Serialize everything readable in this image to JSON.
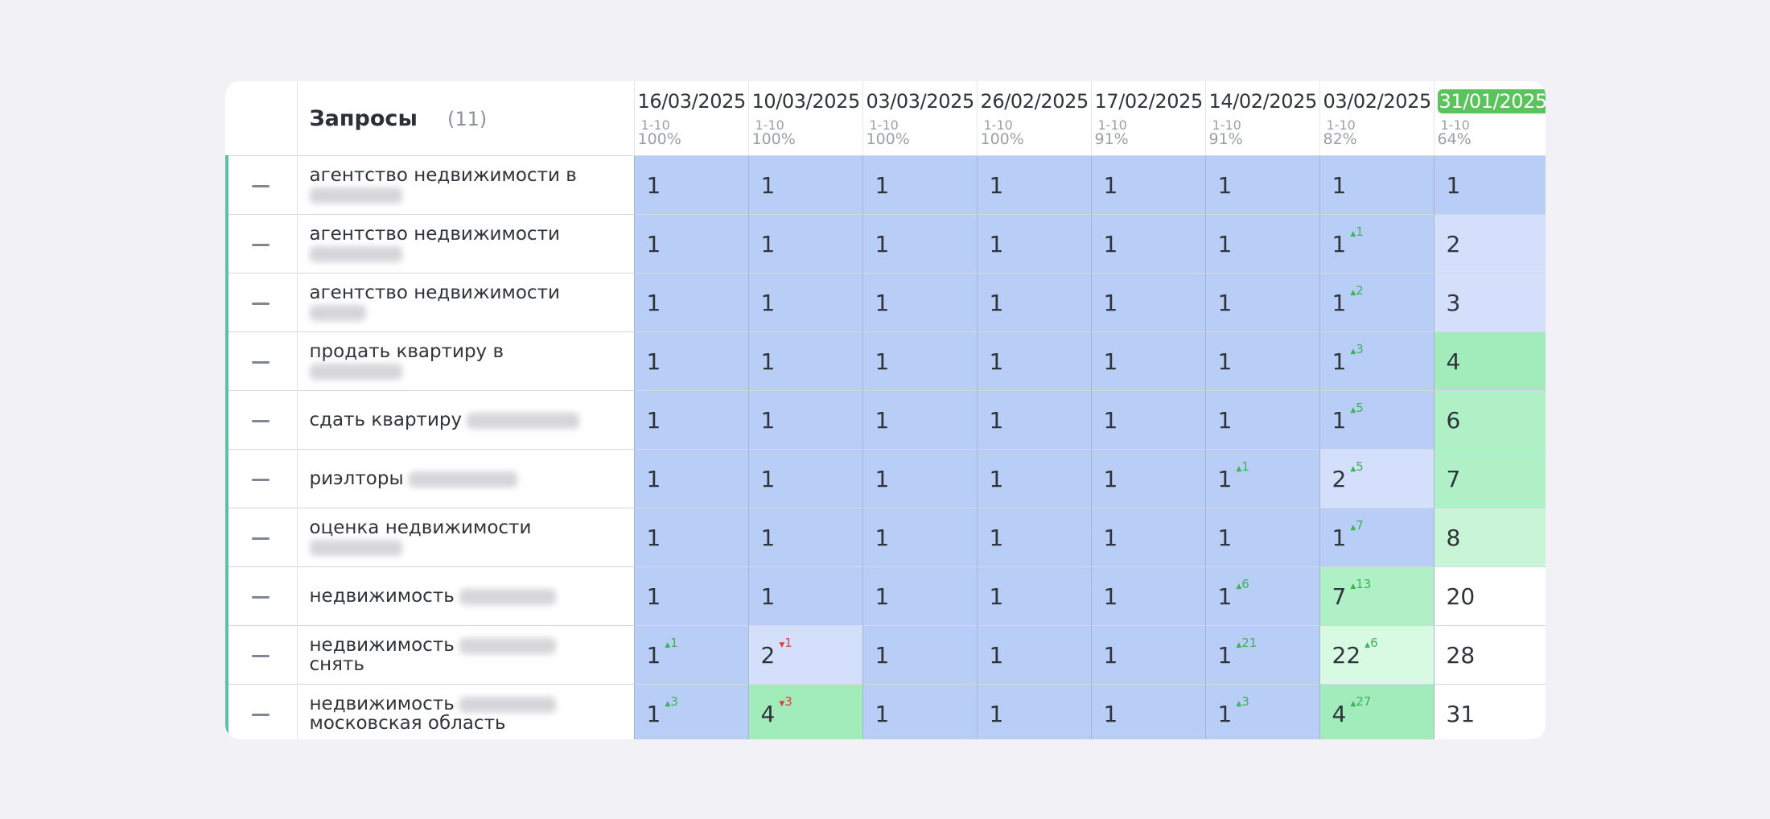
{
  "header": {
    "title": "Запросы",
    "count": "(11)"
  },
  "dates": [
    {
      "date": "16/03/2025",
      "range": "1-10",
      "pct": "100%"
    },
    {
      "date": "10/03/2025",
      "range": "1-10",
      "pct": "100%"
    },
    {
      "date": "03/03/2025",
      "range": "1-10",
      "pct": "100%"
    },
    {
      "date": "26/02/2025",
      "range": "1-10",
      "pct": "100%"
    },
    {
      "date": "17/02/2025",
      "range": "1-10",
      "pct": "91%"
    },
    {
      "date": "14/02/2025",
      "range": "1-10",
      "pct": "91%"
    },
    {
      "date": "03/02/2025",
      "range": "1-10",
      "pct": "82%"
    },
    {
      "date": "31/01/2025",
      "range": "1-10",
      "pct": "64%",
      "highlighted": true
    }
  ],
  "rows": [
    {
      "query": [
        "агентство недвижимости в"
      ],
      "blur": [
        null,
        115
      ],
      "cells": [
        [
          "1",
          "",
          "pd"
        ],
        [
          "1",
          "",
          "pd"
        ],
        [
          "1",
          "",
          "pd"
        ],
        [
          "1",
          "",
          "pd"
        ],
        [
          "1",
          "",
          "pd"
        ],
        [
          "1",
          "",
          "pd"
        ],
        [
          "1",
          "",
          "pd"
        ],
        [
          "1",
          "",
          "pd"
        ]
      ]
    },
    {
      "query": [
        "агентство недвижимости"
      ],
      "blur": [
        null,
        115
      ],
      "cells": [
        [
          "1",
          "",
          "pd"
        ],
        [
          "1",
          "",
          "pd"
        ],
        [
          "1",
          "",
          "pd"
        ],
        [
          "1",
          "",
          "pd"
        ],
        [
          "1",
          "",
          "pd"
        ],
        [
          "1",
          "",
          "pd"
        ],
        [
          "1",
          "+1",
          "pd"
        ],
        [
          "2",
          "",
          "pl"
        ]
      ]
    },
    {
      "query": [
        "агентство недвижимости"
      ],
      "blur": [
        null,
        70
      ],
      "cells": [
        [
          "1",
          "",
          "pd"
        ],
        [
          "1",
          "",
          "pd"
        ],
        [
          "1",
          "",
          "pd"
        ],
        [
          "1",
          "",
          "pd"
        ],
        [
          "1",
          "",
          "pd"
        ],
        [
          "1",
          "",
          "pd"
        ],
        [
          "1",
          "+2",
          "pd"
        ],
        [
          "3",
          "",
          "pl"
        ]
      ]
    },
    {
      "query": [
        "продать квартиру в"
      ],
      "blur": [
        null,
        115
      ],
      "cells": [
        [
          "1",
          "",
          "pd"
        ],
        [
          "1",
          "",
          "pd"
        ],
        [
          "1",
          "",
          "pd"
        ],
        [
          "1",
          "",
          "pd"
        ],
        [
          "1",
          "",
          "pd"
        ],
        [
          "1",
          "",
          "pd"
        ],
        [
          "1",
          "+3",
          "pd"
        ],
        [
          "4",
          "",
          "gd"
        ]
      ]
    },
    {
      "query": [
        "сдать квартиру"
      ],
      "blur": [
        140,
        null
      ],
      "cells": [
        [
          "1",
          "",
          "pd"
        ],
        [
          "1",
          "",
          "pd"
        ],
        [
          "1",
          "",
          "pd"
        ],
        [
          "1",
          "",
          "pd"
        ],
        [
          "1",
          "",
          "pd"
        ],
        [
          "1",
          "",
          "pd"
        ],
        [
          "1",
          "+5",
          "pd"
        ],
        [
          "6",
          "",
          "gm"
        ]
      ]
    },
    {
      "query": [
        "риэлторы"
      ],
      "blur": [
        135,
        null
      ],
      "cells": [
        [
          "1",
          "",
          "pd"
        ],
        [
          "1",
          "",
          "pd"
        ],
        [
          "1",
          "",
          "pd"
        ],
        [
          "1",
          "",
          "pd"
        ],
        [
          "1",
          "",
          "pd"
        ],
        [
          "1",
          "+1",
          "pd"
        ],
        [
          "2",
          "+5",
          "pl"
        ],
        [
          "7",
          "",
          "gm"
        ]
      ]
    },
    {
      "query": [
        "оценка недвижимости"
      ],
      "blur": [
        null,
        115
      ],
      "cells": [
        [
          "1",
          "",
          "pd"
        ],
        [
          "1",
          "",
          "pd"
        ],
        [
          "1",
          "",
          "pd"
        ],
        [
          "1",
          "",
          "pd"
        ],
        [
          "1",
          "",
          "pd"
        ],
        [
          "1",
          "",
          "pd"
        ],
        [
          "1",
          "+7",
          "pd"
        ],
        [
          "8",
          "",
          "gl"
        ]
      ]
    },
    {
      "query": [
        "недвижимость"
      ],
      "blur": [
        120,
        null
      ],
      "cells": [
        [
          "1",
          "",
          "pd"
        ],
        [
          "1",
          "",
          "pd"
        ],
        [
          "1",
          "",
          "pd"
        ],
        [
          "1",
          "",
          "pd"
        ],
        [
          "1",
          "",
          "pd"
        ],
        [
          "1",
          "+6",
          "pd"
        ],
        [
          "7",
          "+13",
          "gm"
        ],
        [
          "20",
          "",
          "w"
        ]
      ]
    },
    {
      "query": [
        "недвижимость",
        "снять"
      ],
      "blur": [
        120,
        null
      ],
      "cells": [
        [
          "1",
          "+1",
          "pd"
        ],
        [
          "2",
          "-1",
          "pl"
        ],
        [
          "1",
          "",
          "pd"
        ],
        [
          "1",
          "",
          "pd"
        ],
        [
          "1",
          "",
          "pd"
        ],
        [
          "1",
          "+21",
          "pd"
        ],
        [
          "22",
          "+6",
          "gx"
        ],
        [
          "28",
          "",
          "w"
        ]
      ]
    },
    {
      "query": [
        "недвижимость",
        "московская область"
      ],
      "blur": [
        120,
        null
      ],
      "cells": [
        [
          "1",
          "+3",
          "pd"
        ],
        [
          "4",
          "-3",
          "gd"
        ],
        [
          "1",
          "",
          "pd"
        ],
        [
          "1",
          "",
          "pd"
        ],
        [
          "1",
          "",
          "pd"
        ],
        [
          "1",
          "+3",
          "pd"
        ],
        [
          "4",
          "+27",
          "gd"
        ],
        [
          "31",
          "",
          "w"
        ]
      ]
    }
  ]
}
